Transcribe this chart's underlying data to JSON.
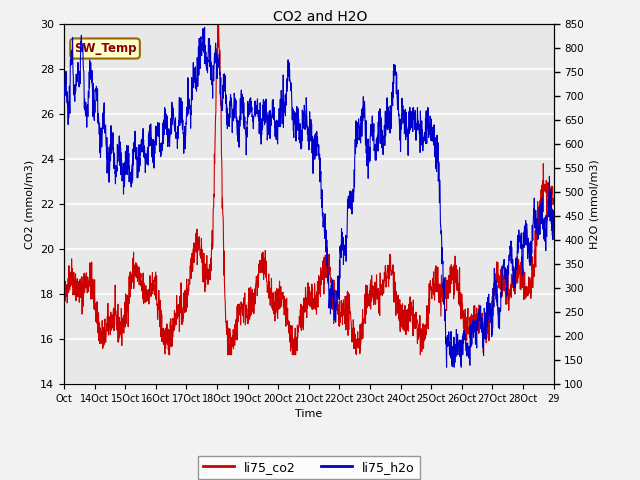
{
  "title": "CO2 and H2O",
  "xlabel": "Time",
  "ylabel_left": "CO2 (mmol/m3)",
  "ylabel_right": "H2O (mmol/m3)",
  "ylim_left": [
    14,
    30
  ],
  "ylim_right": [
    100,
    850
  ],
  "yticks_left": [
    14,
    16,
    18,
    20,
    22,
    24,
    26,
    28,
    30
  ],
  "yticks_right": [
    100,
    150,
    200,
    250,
    300,
    350,
    400,
    450,
    500,
    550,
    600,
    650,
    700,
    750,
    800,
    850
  ],
  "xtick_labels": [
    "Oct",
    "14Oct",
    "15Oct",
    "16Oct",
    "17Oct",
    "18Oct",
    "19Oct",
    "20Oct",
    "21Oct",
    "22Oct",
    "23Oct",
    "24Oct",
    "25Oct",
    "26Oct",
    "27Oct",
    "28Oct",
    "29"
  ],
  "color_co2": "#cc0000",
  "color_h2o": "#0000cc",
  "legend_co2": "li75_co2",
  "legend_h2o": "li75_h2o",
  "annotation_text": "SW_Temp",
  "annotation_color": "#8b0000",
  "annotation_bg": "#ffffcc",
  "annotation_border": "#996600",
  "plot_bg_color": "#e8e8e8",
  "fig_bg_color": "#f2f2f2",
  "grid_color": "#ffffff",
  "grid_linewidth": 1.2
}
